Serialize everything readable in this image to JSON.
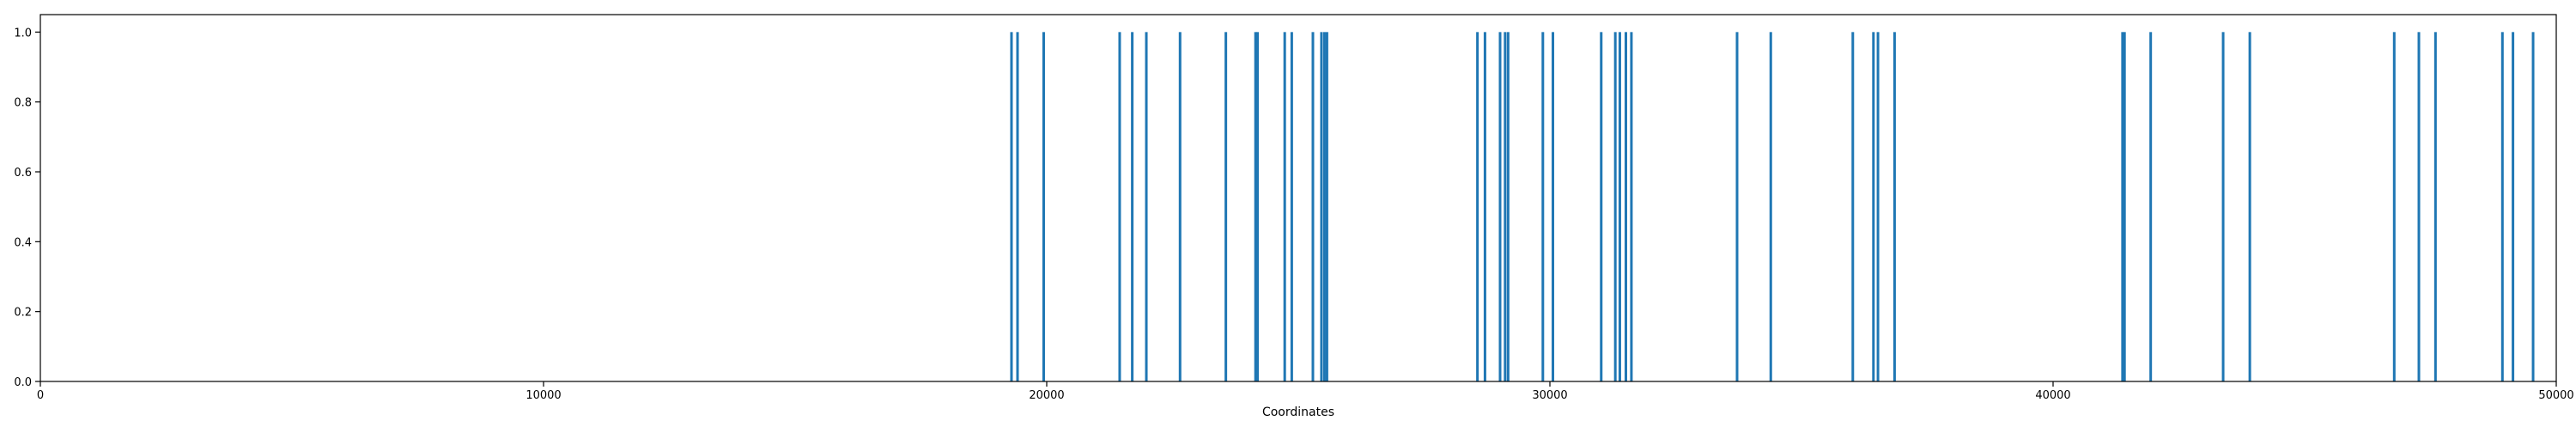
{
  "chart_data": {
    "type": "bar",
    "title": "",
    "xlabel": "Coordinates",
    "ylabel": "",
    "xlim": [
      0,
      50000
    ],
    "ylim": [
      0,
      1.05
    ],
    "xticks": [
      {
        "value": 0,
        "label": "0"
      },
      {
        "value": 10000,
        "label": "10000"
      },
      {
        "value": 20000,
        "label": "20000"
      },
      {
        "value": 30000,
        "label": "30000"
      },
      {
        "value": 40000,
        "label": "40000"
      },
      {
        "value": 50000,
        "label": "50000"
      }
    ],
    "yticks": [
      {
        "value": 0.0,
        "label": "0.0"
      },
      {
        "value": 0.2,
        "label": "0.2"
      },
      {
        "value": 0.4,
        "label": "0.4"
      },
      {
        "value": 0.6,
        "label": "0.6"
      },
      {
        "value": 0.8,
        "label": "0.8"
      },
      {
        "value": 1.0,
        "label": "1.0"
      }
    ],
    "grid": false,
    "color": "#1f77b4",
    "x": [
      19300,
      19420,
      19940,
      21450,
      21700,
      21980,
      22650,
      23560,
      24150,
      24190,
      24730,
      24870,
      25290,
      25460,
      25520,
      25570,
      28560,
      28710,
      29010,
      29110,
      29170,
      29860,
      30060,
      31020,
      31300,
      31390,
      31510,
      31620,
      33720,
      34390,
      36020,
      36430,
      36520,
      36850,
      41380,
      41420,
      41940,
      43380,
      43910,
      46780,
      47270,
      47600,
      48930,
      49140,
      49540
    ],
    "values": [
      1,
      1,
      1,
      1,
      1,
      1,
      1,
      1,
      1,
      1,
      1,
      1,
      1,
      1,
      1,
      1,
      1,
      1,
      1,
      1,
      1,
      1,
      1,
      1,
      1,
      1,
      1,
      1,
      1,
      1,
      1,
      1,
      1,
      1,
      1,
      1,
      1,
      1,
      1,
      1,
      1,
      1,
      1,
      1,
      1
    ]
  }
}
